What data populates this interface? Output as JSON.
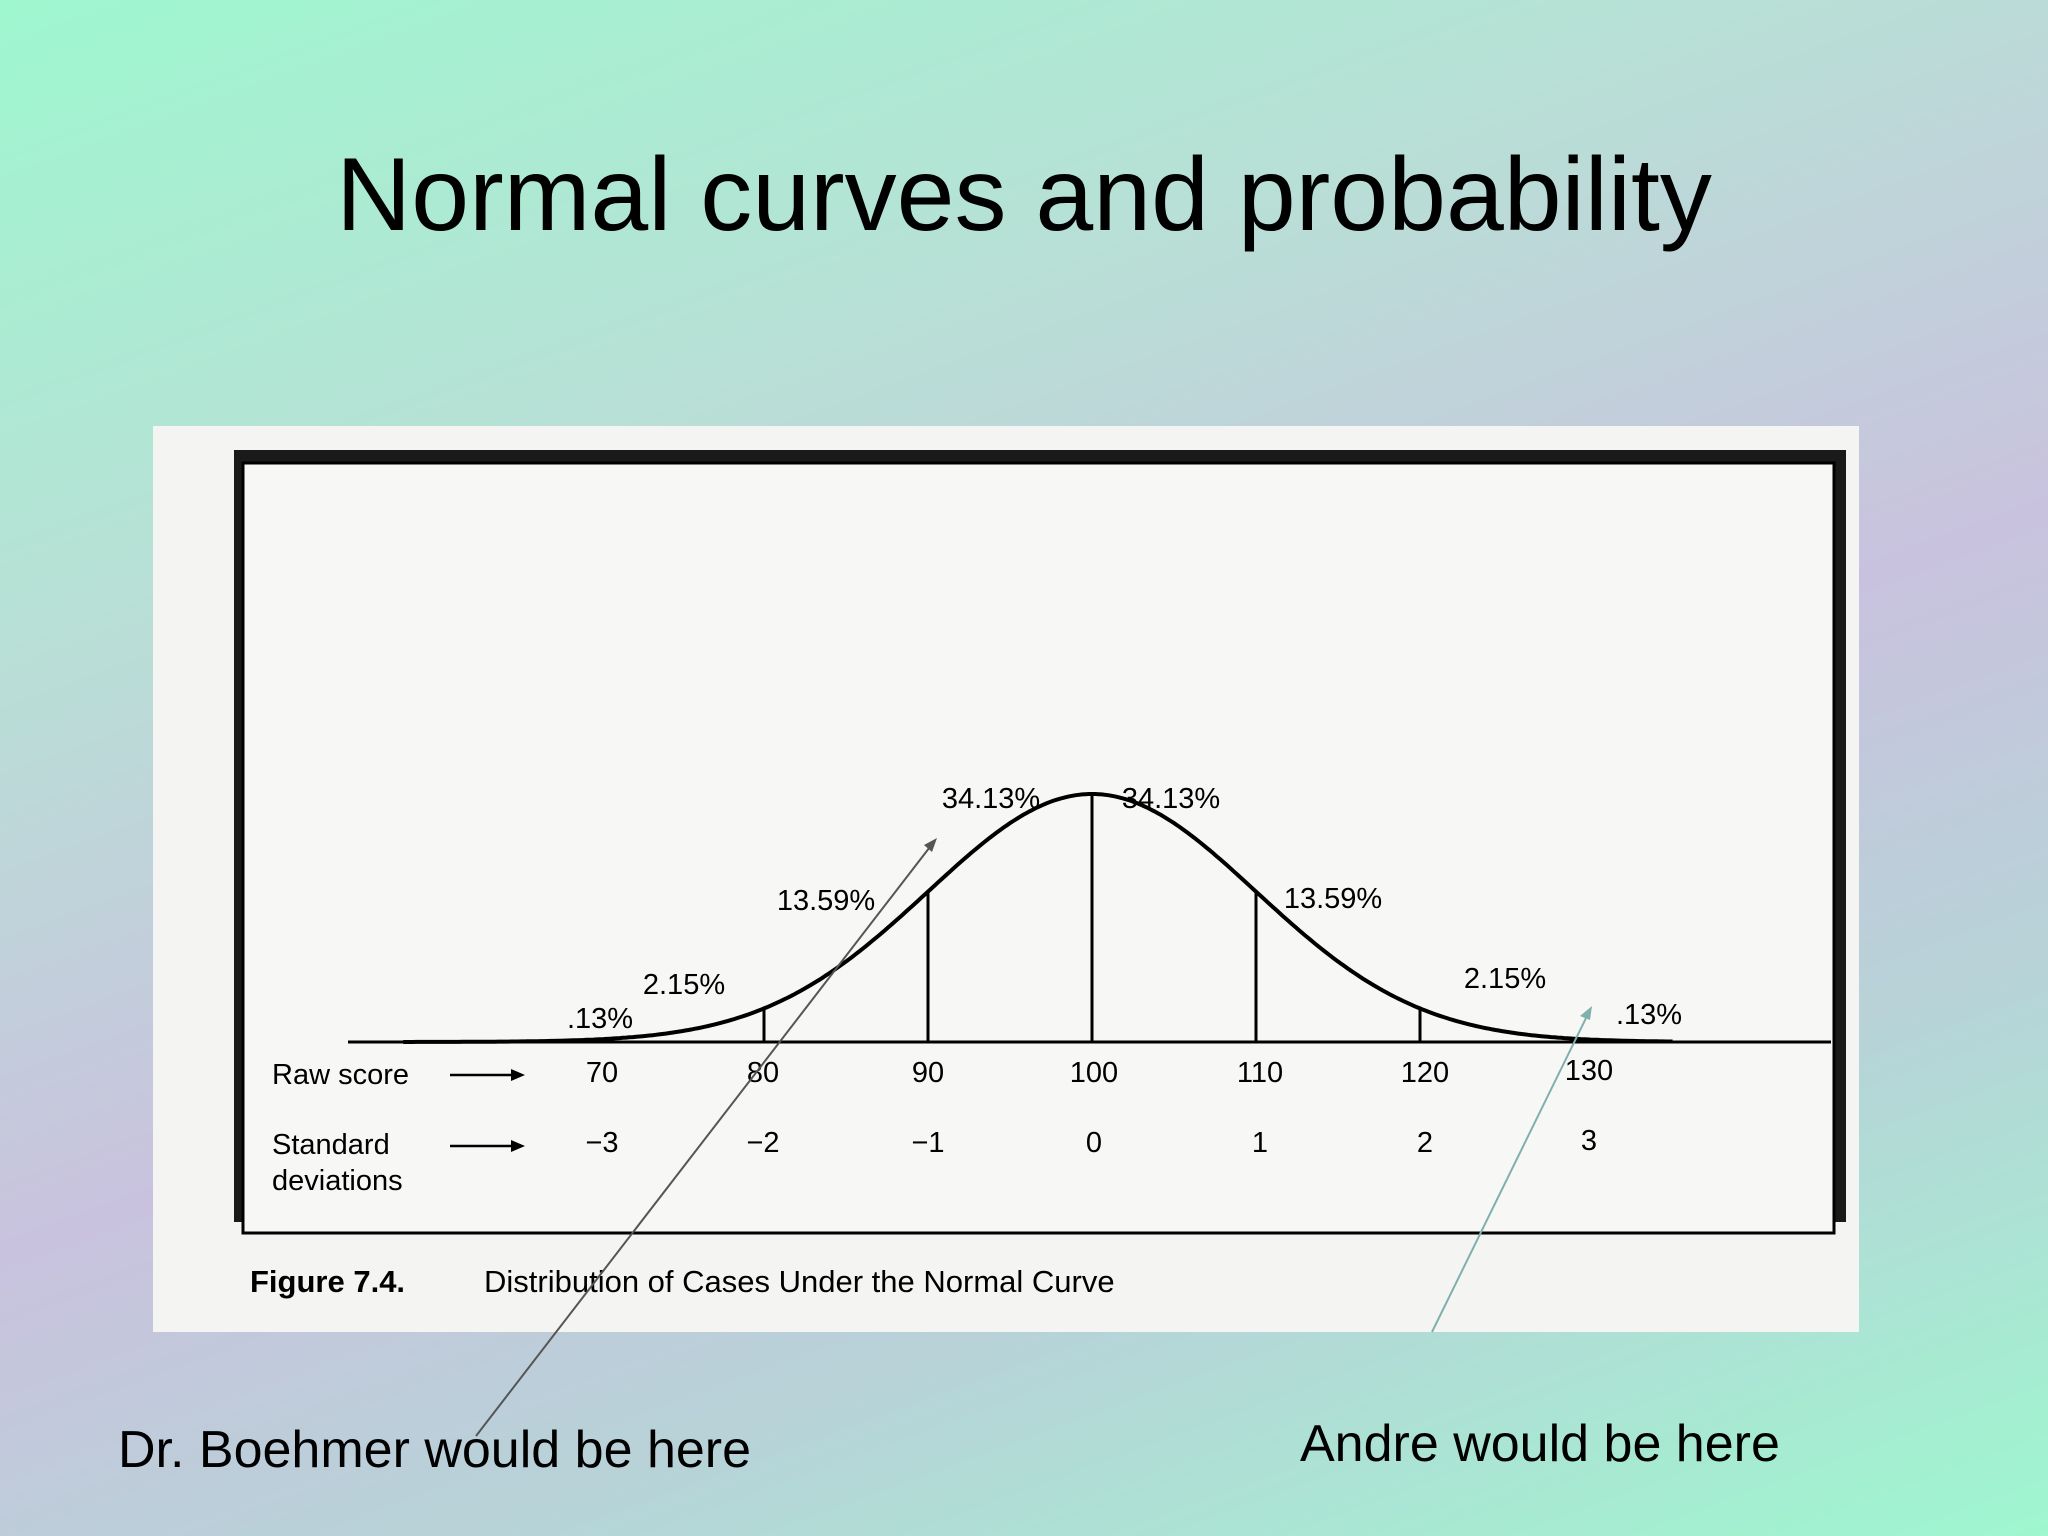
{
  "slide": {
    "title": "Normal curves and probability"
  },
  "figure": {
    "caption_bold": "Figure 7.4.",
    "caption_rest": "Distribution of Cases Under the Normal Curve",
    "raw_score_label": "Raw score",
    "sd_label_line1": "Standard",
    "sd_label_line2": "deviations",
    "raw_scores": [
      "70",
      "80",
      "90",
      "100",
      "110",
      "120",
      "130"
    ],
    "standard_deviations": [
      "−3",
      "−2",
      "−1",
      "0",
      "1",
      "2",
      "3"
    ],
    "section_percents": [
      ".13%",
      "2.15%",
      "13.59%",
      "34.13%",
      "34.13%",
      "13.59%",
      "2.15%",
      ".13%"
    ]
  },
  "annotations": {
    "left": "Dr. Boehmer would be here",
    "right": "Andre would be here"
  },
  "colors": {
    "ink": "#000000",
    "paper": "#f4f4f3",
    "pointer_left": "#555555",
    "pointer_right": "#7fb0ad"
  }
}
